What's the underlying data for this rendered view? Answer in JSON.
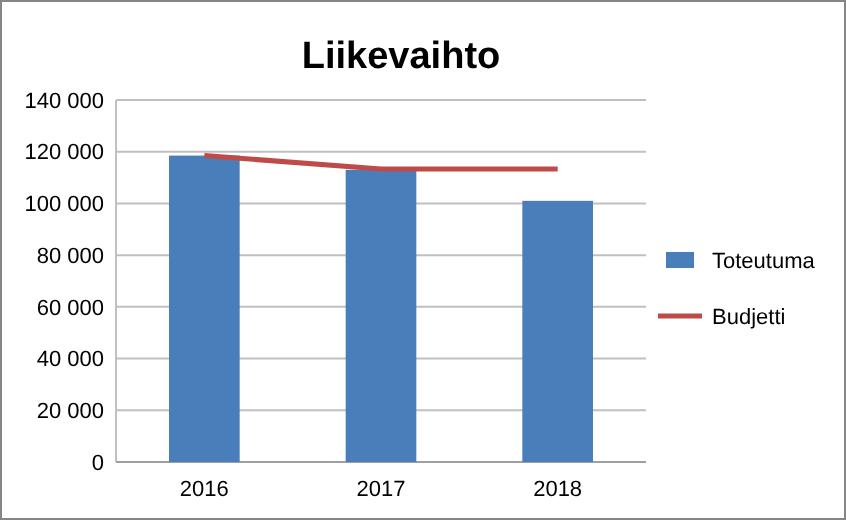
{
  "chart_data": {
    "type": "bar",
    "title": "Liikevaihto",
    "categories": [
      "2016",
      "2017",
      "2018"
    ],
    "series": [
      {
        "name": "Toteutuma",
        "color": "#4a7ebb",
        "values": [
          118500,
          113000,
          101000
        ]
      },
      {
        "name": "Budjetti",
        "type": "line",
        "color": "#be4b48",
        "values": [
          118500,
          113300,
          113300
        ]
      }
    ],
    "ylim": [
      0,
      140000
    ],
    "yticks": [
      0,
      {
        "value": 20000,
        "label": "20 000"
      },
      {
        "value": 40000,
        "label": "40 000"
      },
      {
        "value": 60000,
        "label": "60 000"
      },
      {
        "value": 80000,
        "label": "80 000"
      },
      {
        "value": 100000,
        "label": "100 000"
      },
      {
        "value": 120000,
        "label": "120 000"
      },
      {
        "value": 140000,
        "label": "140 000"
      }
    ],
    "grid": "y",
    "legend": "right",
    "marker": "none"
  }
}
